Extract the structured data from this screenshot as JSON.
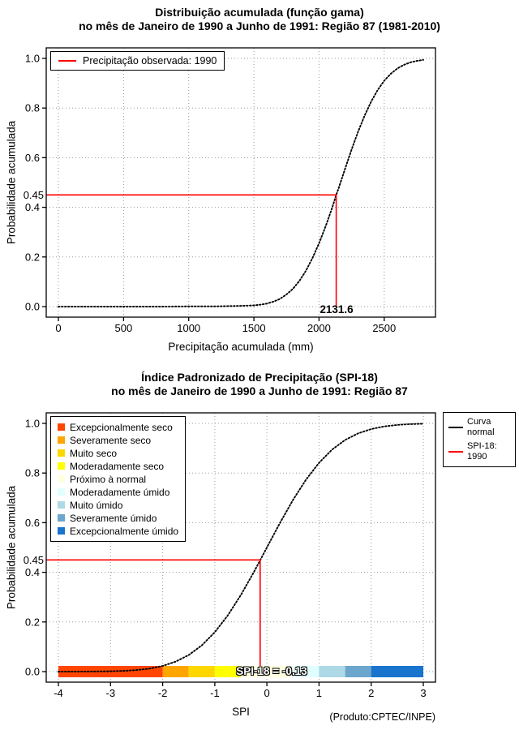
{
  "colors": {
    "observed": "#ff0000",
    "curve": "#000000",
    "background": "#ffffff"
  },
  "chart_data": [
    {
      "type": "line",
      "title": "Distribuição acumulada (função gama)",
      "subtitle": "no mês de Janeiro de 1990 a Junho de 1991: Região 87 (1981-2010)",
      "xlabel": "Precipitação acumulada (mm)",
      "ylabel": "Probabilidade acumulada",
      "xlim": [
        0,
        2800
      ],
      "ylim": [
        0,
        1
      ],
      "xticks": [
        0,
        500,
        1000,
        1500,
        2000,
        2500
      ],
      "xtick_labels": [
        "0",
        "500",
        "1000",
        "1500",
        "2000",
        "2500"
      ],
      "yticks": [
        0,
        0.2,
        0.4,
        0.6,
        0.8,
        1
      ],
      "ytick_labels": [
        "0.0",
        "0.2",
        "0.4",
        "0.6",
        "0.8",
        "1.0"
      ],
      "grid": true,
      "legend_position": "top-left",
      "series": [
        {
          "name": "Distribuição acumulada (função gama)",
          "color": "#000000",
          "style": "dotted",
          "points": [
            [
              0,
              0
            ],
            [
              200,
              0
            ],
            [
              400,
              0
            ],
            [
              600,
              0
            ],
            [
              800,
              0
            ],
            [
              1000,
              0.001
            ],
            [
              1100,
              0.001
            ],
            [
              1200,
              0.001
            ],
            [
              1300,
              0.002
            ],
            [
              1400,
              0.003
            ],
            [
              1450,
              0.004
            ],
            [
              1500,
              0.005
            ],
            [
              1550,
              0.008
            ],
            [
              1600,
              0.012
            ],
            [
              1650,
              0.02
            ],
            [
              1700,
              0.031
            ],
            [
              1750,
              0.049
            ],
            [
              1800,
              0.072
            ],
            [
              1850,
              0.104
            ],
            [
              1900,
              0.145
            ],
            [
              1950,
              0.196
            ],
            [
              2000,
              0.255
            ],
            [
              2050,
              0.323
            ],
            [
              2100,
              0.397
            ],
            [
              2131.6,
              0.45
            ],
            [
              2150,
              0.476
            ],
            [
              2200,
              0.556
            ],
            [
              2250,
              0.633
            ],
            [
              2300,
              0.705
            ],
            [
              2350,
              0.77
            ],
            [
              2400,
              0.826
            ],
            [
              2450,
              0.873
            ],
            [
              2500,
              0.91
            ],
            [
              2550,
              0.938
            ],
            [
              2600,
              0.959
            ],
            [
              2650,
              0.974
            ],
            [
              2700,
              0.984
            ],
            [
              2750,
              0.99
            ],
            [
              2800,
              0.994
            ]
          ]
        }
      ],
      "annotation": {
        "legend_label": "Precipitação observada: 1990",
        "color": "#ff0000",
        "probability": 0.45,
        "probability_label": "0.45",
        "x": 2131.6,
        "x_label": "2131.6"
      }
    },
    {
      "type": "line",
      "title": "Índice Padronizado de Precipitação (SPI-18)",
      "subtitle": "no mês de Janeiro de 1990 a Junho de 1991: Região 87",
      "xlabel": "SPI",
      "ylabel": "Probabilidade acumulada",
      "xlim": [
        -4,
        3
      ],
      "ylim": [
        0,
        1
      ],
      "xticks": [
        -4,
        -3,
        -2,
        -1,
        0,
        1,
        2,
        3
      ],
      "xtick_labels": [
        "-4",
        "-3",
        "-2",
        "-1",
        "0",
        "1",
        "2",
        "3"
      ],
      "yticks": [
        0,
        0.2,
        0.4,
        0.6,
        0.8,
        1
      ],
      "ytick_labels": [
        "0.0",
        "0.2",
        "0.4",
        "0.6",
        "0.8",
        "1.0"
      ],
      "grid": true,
      "legend_position": "top-right",
      "series": [
        {
          "name": "Curva normal",
          "color": "#000000",
          "style": "dotted",
          "points": [
            [
              -4,
              0
            ],
            [
              -3.75,
              0.0001
            ],
            [
              -3.5,
              0.0002
            ],
            [
              -3.25,
              0.0006
            ],
            [
              -3,
              0.0013
            ],
            [
              -2.75,
              0.003
            ],
            [
              -2.5,
              0.0062
            ],
            [
              -2.25,
              0.0122
            ],
            [
              -2,
              0.0228
            ],
            [
              -1.75,
              0.0401
            ],
            [
              -1.5,
              0.0668
            ],
            [
              -1.25,
              0.1056
            ],
            [
              -1,
              0.1587
            ],
            [
              -0.75,
              0.2266
            ],
            [
              -0.5,
              0.3085
            ],
            [
              -0.25,
              0.4013
            ],
            [
              -0.13,
              0.4483
            ],
            [
              0,
              0.5
            ],
            [
              0.25,
              0.5987
            ],
            [
              0.5,
              0.6915
            ],
            [
              0.75,
              0.7734
            ],
            [
              1,
              0.8413
            ],
            [
              1.25,
              0.8944
            ],
            [
              1.5,
              0.9332
            ],
            [
              1.75,
              0.9599
            ],
            [
              2,
              0.9772
            ],
            [
              2.25,
              0.9878
            ],
            [
              2.5,
              0.9938
            ],
            [
              2.75,
              0.997
            ],
            [
              3,
              0.9987
            ]
          ]
        }
      ],
      "legend_curves": [
        {
          "label": "Curva normal",
          "color": "#000000"
        },
        {
          "label": "SPI-18: 1990",
          "color": "#ff0000"
        }
      ],
      "categories": [
        {
          "label": "Excepcionalmente seco",
          "color": "#ff4500"
        },
        {
          "label": "Severamente seco",
          "color": "#ffa500"
        },
        {
          "label": "Muito seco",
          "color": "#ffd700"
        },
        {
          "label": "Moderadamente seco",
          "color": "#ffff00"
        },
        {
          "label": "Próximo à normal",
          "color": "#ffffe0"
        },
        {
          "label": "Moderadamente úmido",
          "color": "#e0ffff"
        },
        {
          "label": "Muito úmido",
          "color": "#add8e6"
        },
        {
          "label": "Severamente úmido",
          "color": "#6ca6cd"
        },
        {
          "label": "Excepcionalmente úmido",
          "color": "#1874cd"
        }
      ],
      "colorbar": {
        "segments": [
          {
            "from": -4,
            "to": -2,
            "color": "#ff4500"
          },
          {
            "from": -2,
            "to": -1.5,
            "color": "#ffa500"
          },
          {
            "from": -1.5,
            "to": -1,
            "color": "#ffd700"
          },
          {
            "from": -1,
            "to": -0.5,
            "color": "#ffff00"
          },
          {
            "from": -0.5,
            "to": 0.5,
            "color": "#ffffe0"
          },
          {
            "from": 0.5,
            "to": 1,
            "color": "#e0ffff"
          },
          {
            "from": 1,
            "to": 1.5,
            "color": "#add8e6"
          },
          {
            "from": 1.5,
            "to": 2,
            "color": "#6ca6cd"
          },
          {
            "from": 2,
            "to": 3,
            "color": "#1874cd"
          }
        ]
      },
      "annotation": {
        "color": "#ff0000",
        "probability": 0.45,
        "probability_label": "0.45",
        "x": -0.13,
        "x_label": "SPI-18 = -0.13"
      },
      "credit": "(Produto:CPTEC/INPE)"
    }
  ]
}
